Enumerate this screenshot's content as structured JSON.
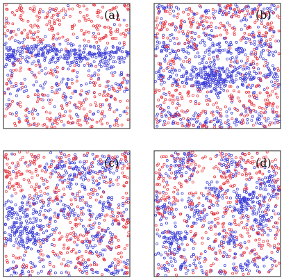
{
  "figure": {
    "description_free": true,
    "colors": {
      "red_particles": "#e8303a",
      "blue_particles": "#3a3ad6",
      "frame": "#1a1a1a"
    },
    "panels": [
      {
        "label": "(a)",
        "structure": "band"
      },
      {
        "label": "(b)",
        "structure": "bands"
      },
      {
        "label": "(c)",
        "structure": "mixed"
      },
      {
        "label": "(d)",
        "structure": "clusters"
      }
    ]
  }
}
